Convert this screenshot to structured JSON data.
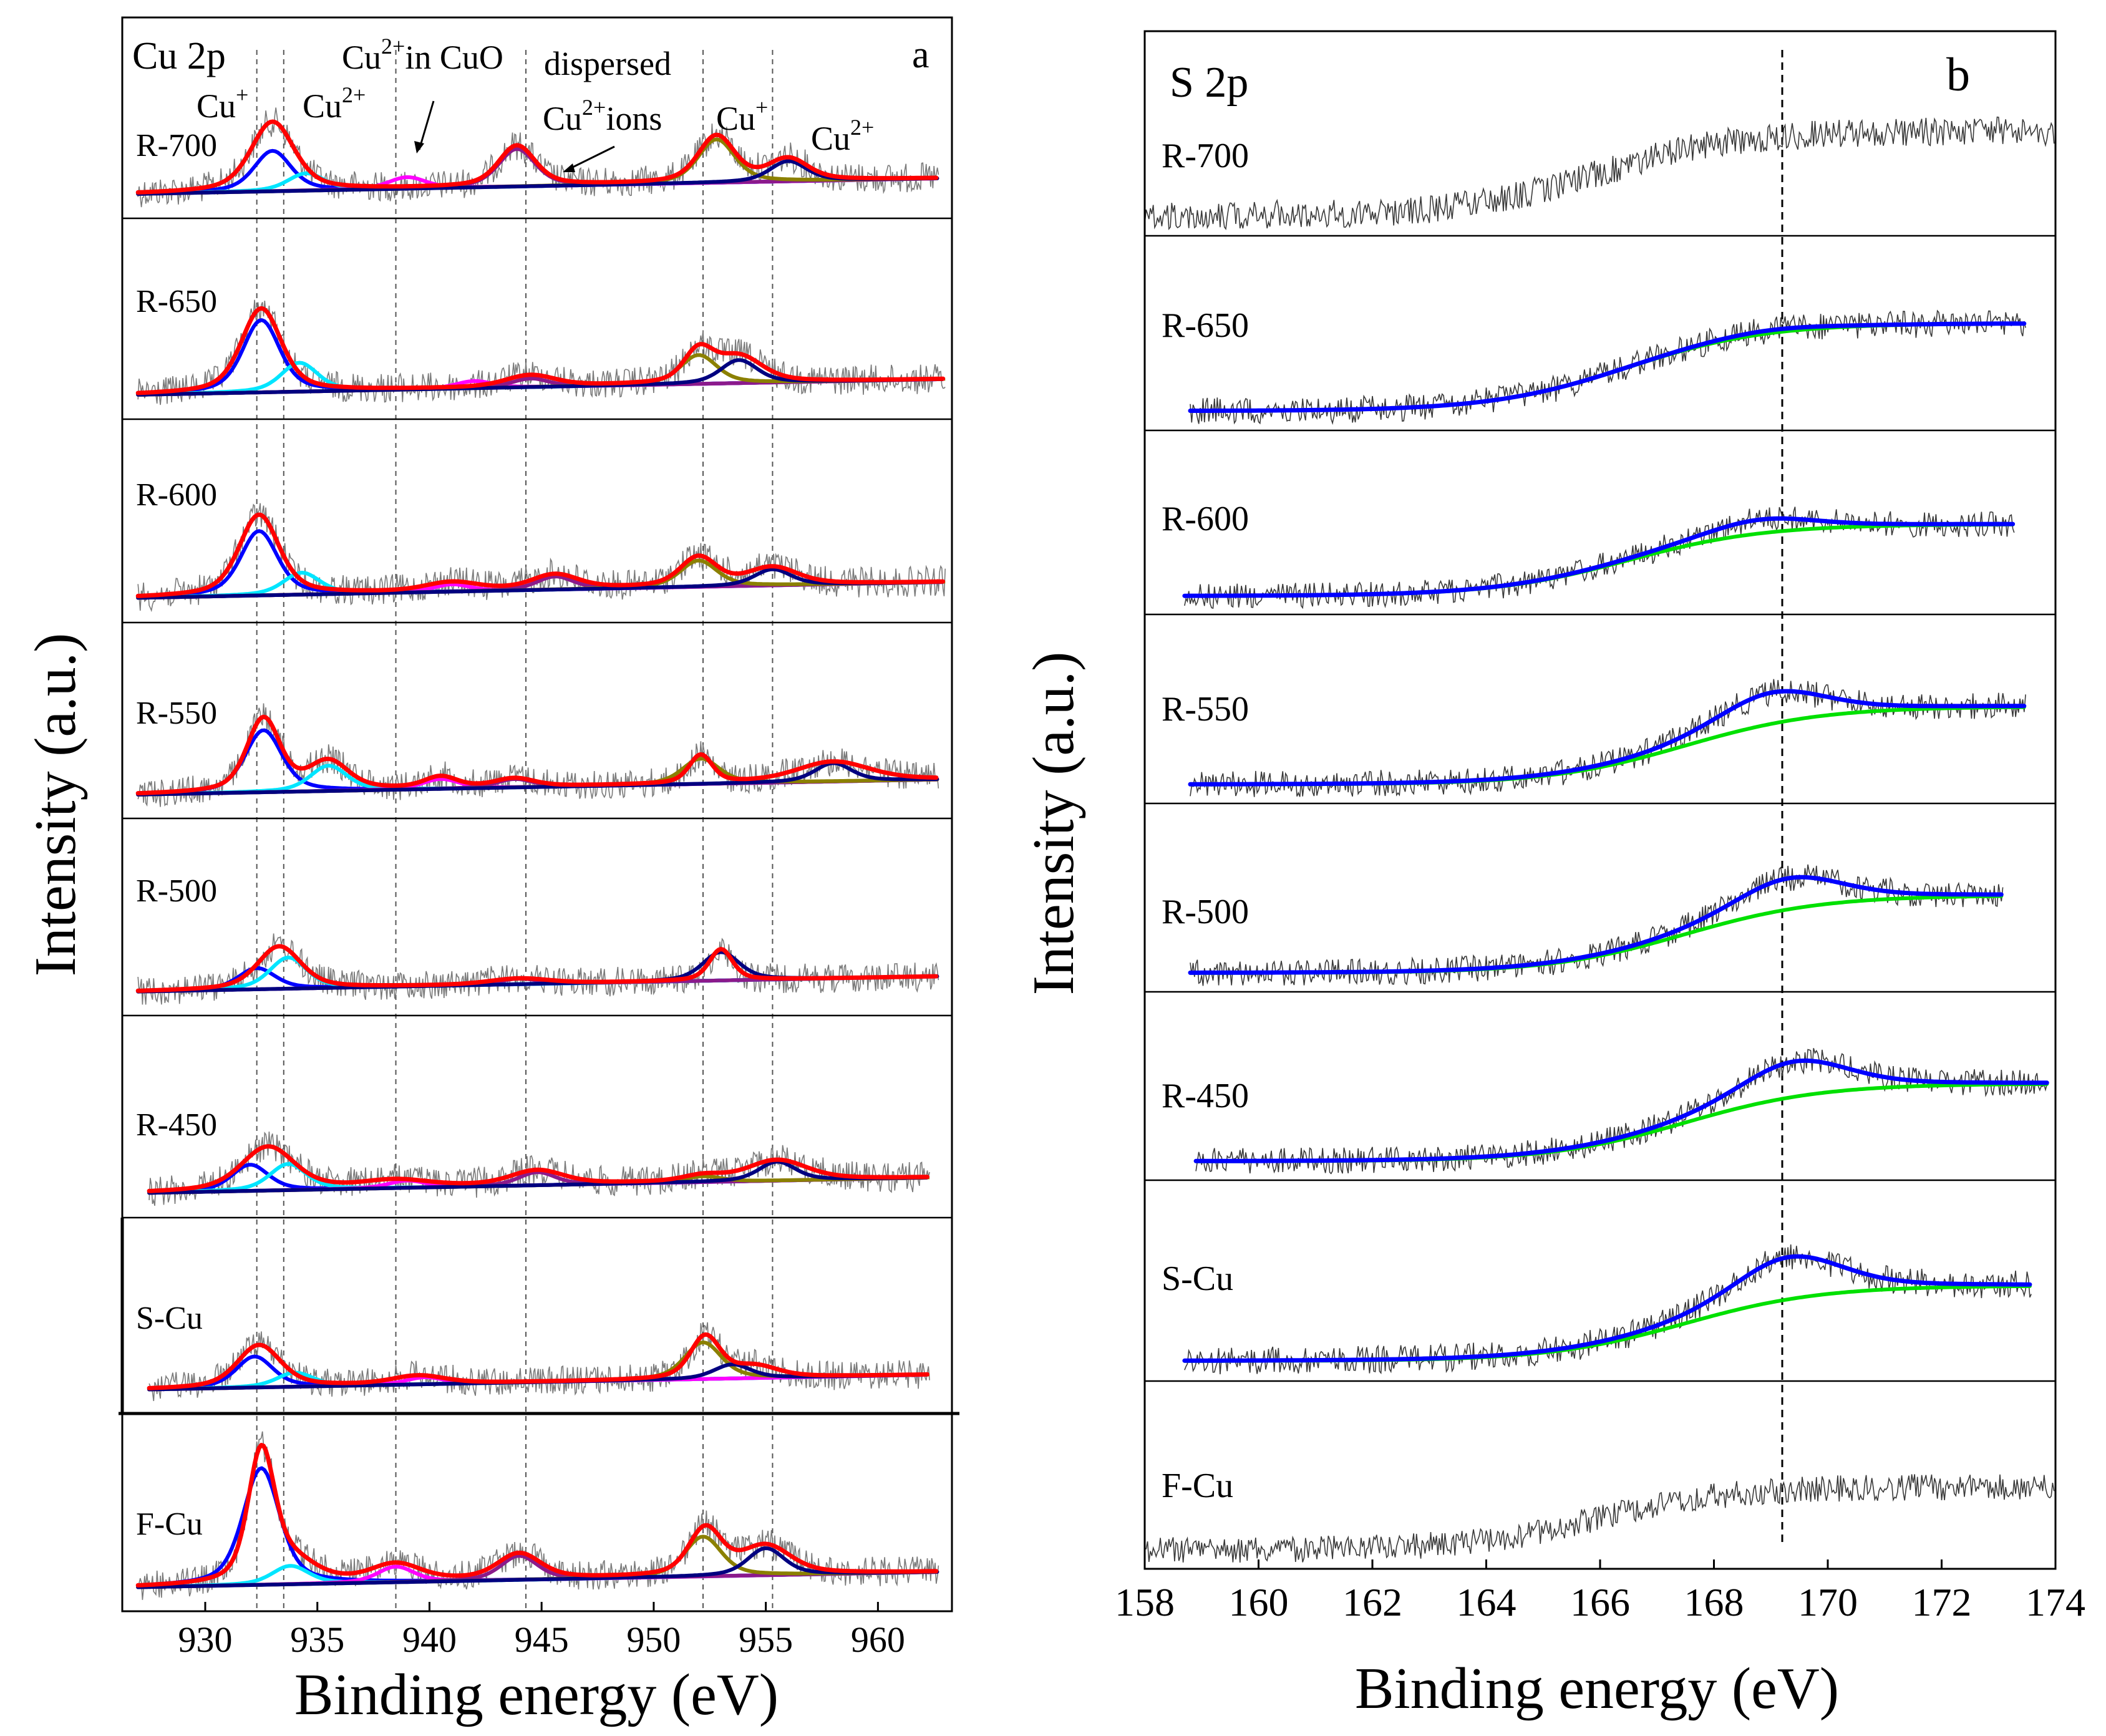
{
  "figure": {
    "ylabel": "Intensity (a.u.)"
  },
  "panels": [
    {
      "id": "a",
      "corner_label": "a",
      "region_label": "Cu 2p",
      "xlabel": "Binding  energy (eV)",
      "ticks": [
        "930",
        "935",
        "940",
        "945",
        "950",
        "955",
        "960"
      ],
      "annotations": [
        {
          "base": "Cu",
          "sup": "+",
          "rest": ""
        },
        {
          "base": "Cu",
          "sup": "2+",
          "rest": ""
        },
        {
          "base": "Cu",
          "sup": "2+",
          "rest": "in CuO"
        },
        {
          "base": "dispersed",
          "sup": "",
          "rest": ""
        },
        {
          "base": "Cu",
          "sup": "2+",
          "rest": "ions"
        },
        {
          "base": "Cu",
          "sup": "+",
          "rest": ""
        },
        {
          "base": "Cu",
          "sup": "2+",
          "rest": ""
        }
      ],
      "samples": [
        "R-700",
        "R-650",
        "R-600",
        "R-550",
        "R-500",
        "R-450",
        "S-Cu",
        "F-Cu"
      ]
    },
    {
      "id": "b",
      "corner_label": "b",
      "region_label": "S 2p",
      "xlabel": "Binding  energy (eV)",
      "ticks": [
        "158",
        "160",
        "162",
        "164",
        "166",
        "168",
        "170",
        "172",
        "174"
      ],
      "samples": [
        "R-700",
        "R-650",
        "R-600",
        "R-550",
        "R-500",
        "R-450",
        "S-Cu",
        "F-Cu"
      ]
    }
  ],
  "colors": {
    "envelope": "#ff0000",
    "cu_plus_main": "#0000ff",
    "cu2_main": "#00e5ff",
    "cu2_satellite": "#ff00ff",
    "dispersed": "#8b1a8b",
    "cu_plus_2p12": "#8b8000",
    "cu2_2p12": "#000080",
    "background": "#8b8b00",
    "s2p_fit": "#0000ff",
    "s2p_background": "#00e000",
    "raw": "#7a7a7a",
    "dashed_line": "#555555"
  },
  "chart_data": [
    {
      "type": "line",
      "title": "Cu 2p",
      "xlabel": "Binding  energy (eV)",
      "ylabel": "Intensity (a.u.)",
      "xlim": [
        927,
        963
      ],
      "x_ticks": [
        930,
        935,
        940,
        945,
        950,
        955,
        960
      ],
      "reference_lines_eV": [
        932.3,
        933.5,
        938.5,
        944.3,
        952.2,
        955.3
      ],
      "series": [
        {
          "name": "R-700",
          "envelope_peaks": [
            {
              "center": 933.0,
              "height": 0.48,
              "width": 1.3
            },
            {
              "center": 943.9,
              "height": 0.28,
              "width": 1.1
            },
            {
              "center": 952.8,
              "height": 0.32,
              "width": 1.1
            },
            {
              "center": 956.0,
              "height": 0.15,
              "width": 1.2
            }
          ],
          "components": [
            {
              "name": "Cu+",
              "center": 933.0,
              "height": 0.28
            },
            {
              "name": "Cu2+",
              "center": 934.5,
              "height": 0.12
            },
            {
              "name": "Cu2+ satellite",
              "center": 939.0,
              "height": 0.08
            },
            {
              "name": "dispersed Cu2+",
              "center": 943.9,
              "height": 0.26
            },
            {
              "name": "Cu+ 2p1/2",
              "center": 952.8,
              "height": 0.3
            },
            {
              "name": "Cu2+ 2p1/2",
              "center": 956.0,
              "height": 0.14
            }
          ]
        },
        {
          "name": "R-650",
          "envelope_peaks": [
            {
              "center": 932.5,
              "height": 0.58,
              "width": 1.2
            },
            {
              "center": 944.5,
              "height": 0.08,
              "width": 1.5
            },
            {
              "center": 952.0,
              "height": 0.22,
              "width": 0.9
            },
            {
              "center": 953.8,
              "height": 0.18,
              "width": 1.4
            }
          ],
          "components": [
            {
              "name": "Cu+",
              "center": 932.5,
              "height": 0.5
            },
            {
              "name": "Cu2+",
              "center": 934.2,
              "height": 0.2
            },
            {
              "name": "Cu2+ satellite",
              "center": 942.0,
              "height": 0.05
            },
            {
              "name": "dispersed Cu2+",
              "center": 944.5,
              "height": 0.06
            },
            {
              "name": "Cu+ 2p1/2",
              "center": 952.0,
              "height": 0.2
            },
            {
              "name": "Cu2+ 2p1/2",
              "center": 953.8,
              "height": 0.16
            }
          ]
        },
        {
          "name": "R-600",
          "envelope_peaks": [
            {
              "center": 932.4,
              "height": 0.55,
              "width": 1.2
            },
            {
              "center": 941.0,
              "height": 0.06,
              "width": 1.6
            },
            {
              "center": 945.6,
              "height": 0.1,
              "width": 1.4
            },
            {
              "center": 952.0,
              "height": 0.2,
              "width": 1.1
            },
            {
              "center": 955.3,
              "height": 0.12,
              "width": 1.5
            }
          ],
          "components": [
            {
              "name": "Cu+",
              "center": 932.4,
              "height": 0.44
            },
            {
              "name": "Cu2+",
              "center": 934.3,
              "height": 0.15
            },
            {
              "name": "Cu2+ satellite",
              "center": 941.0,
              "height": 0.05
            },
            {
              "name": "dispersed Cu2+",
              "center": 945.6,
              "height": 0.09
            },
            {
              "name": "Cu+ 2p1/2",
              "center": 952.0,
              "height": 0.18
            },
            {
              "name": "Cu2+ 2p1/2",
              "center": 955.3,
              "height": 0.11
            }
          ]
        },
        {
          "name": "R-550",
          "envelope_peaks": [
            {
              "center": 932.6,
              "height": 0.52,
              "width": 1.0
            },
            {
              "center": 935.5,
              "height": 0.2,
              "width": 1.2
            },
            {
              "center": 940.5,
              "height": 0.08,
              "width": 1.0
            },
            {
              "center": 943.8,
              "height": 0.06,
              "width": 1.2
            },
            {
              "center": 952.1,
              "height": 0.2,
              "width": 0.7
            },
            {
              "center": 958.0,
              "height": 0.14,
              "width": 2.2
            }
          ],
          "components": [
            {
              "name": "Cu+",
              "center": 932.6,
              "height": 0.44
            },
            {
              "name": "Cu2+",
              "center": 935.5,
              "height": 0.18
            },
            {
              "name": "Cu2+ satellite",
              "center": 940.5,
              "height": 0.07
            },
            {
              "name": "dispersed Cu2+",
              "center": 943.8,
              "height": 0.06
            },
            {
              "name": "Cu+ 2p1/2",
              "center": 952.1,
              "height": 0.18
            },
            {
              "name": "Cu2+ 2p1/2",
              "center": 958.0,
              "height": 0.13
            }
          ]
        },
        {
          "name": "R-500",
          "envelope_peaks": [
            {
              "center": 933.3,
              "height": 0.3,
              "width": 1.3
            },
            {
              "center": 944.0,
              "height": 0.04,
              "width": 1.8
            },
            {
              "center": 953.0,
              "height": 0.22,
              "width": 0.7
            }
          ],
          "components": [
            {
              "name": "Cu+",
              "center": 932.3,
              "height": 0.15
            },
            {
              "name": "Cu2+",
              "center": 933.7,
              "height": 0.22
            },
            {
              "name": "dispersed Cu2+",
              "center": 944.0,
              "height": 0.04
            },
            {
              "name": "Cu2+ 2p1/2",
              "center": 953.0,
              "height": 0.2
            }
          ]
        },
        {
          "name": "R-450",
          "envelope_peaks": [
            {
              "center": 932.8,
              "height": 0.3,
              "width": 1.6
            },
            {
              "center": 938.5,
              "height": 0.05,
              "width": 2.0
            },
            {
              "center": 944.8,
              "height": 0.1,
              "width": 1.6
            },
            {
              "center": 952.2,
              "height": 0.04,
              "width": 1.2
            },
            {
              "center": 955.5,
              "height": 0.14,
              "width": 1.8
            }
          ],
          "components": [
            {
              "name": "Cu+",
              "center": 932.0,
              "height": 0.18
            },
            {
              "name": "Cu2+",
              "center": 933.7,
              "height": 0.18
            },
            {
              "name": "Cu2+ satellite",
              "center": 939.0,
              "height": 0.05
            },
            {
              "name": "dispersed Cu2+",
              "center": 944.8,
              "height": 0.09
            },
            {
              "name": "Cu+ 2p1/2",
              "center": 952.2,
              "height": 0.04
            },
            {
              "name": "Cu2+ 2p1/2",
              "center": 955.5,
              "height": 0.13
            }
          ]
        },
        {
          "name": "S-Cu",
          "envelope_peaks": [
            {
              "center": 932.4,
              "height": 0.3,
              "width": 1.3
            },
            {
              "center": 939.5,
              "height": 0.06,
              "width": 1.6
            },
            {
              "center": 952.3,
              "height": 0.3,
              "width": 0.9
            },
            {
              "center": 954.5,
              "height": 0.08,
              "width": 1.4
            }
          ],
          "components": [
            {
              "name": "Cu+",
              "center": 932.2,
              "height": 0.22
            },
            {
              "name": "Cu2+",
              "center": 934.0,
              "height": 0.1
            },
            {
              "name": "Cu2+ satellite",
              "center": 939.8,
              "height": 0.05
            },
            {
              "name": "Cu+ 2p1/2",
              "center": 952.2,
              "height": 0.26
            },
            {
              "name": "Cu2+ 2p1/2",
              "center": 953.5,
              "height": 0.1
            }
          ]
        },
        {
          "name": "F-Cu",
          "envelope_peaks": [
            {
              "center": 932.5,
              "height": 0.9,
              "width": 0.8
            },
            {
              "center": 933.8,
              "height": 0.15,
              "width": 1.5
            },
            {
              "center": 938.5,
              "height": 0.12,
              "width": 1.5
            },
            {
              "center": 944.0,
              "height": 0.18,
              "width": 1.3
            },
            {
              "center": 952.3,
              "height": 0.33,
              "width": 1.0
            },
            {
              "center": 955.0,
              "height": 0.2,
              "width": 1.5
            }
          ],
          "components": [
            {
              "name": "Cu+",
              "center": 932.5,
              "height": 0.82
            },
            {
              "name": "Cu2+",
              "center": 933.8,
              "height": 0.13
            },
            {
              "name": "Cu2+ satellite",
              "center": 938.5,
              "height": 0.11
            },
            {
              "name": "dispersed Cu2+",
              "center": 944.0,
              "height": 0.17
            },
            {
              "name": "Cu+ 2p1/2",
              "center": 952.2,
              "height": 0.28
            },
            {
              "name": "Cu2+ 2p1/2",
              "center": 955.0,
              "height": 0.19
            }
          ]
        }
      ]
    },
    {
      "type": "line",
      "title": "S 2p",
      "xlabel": "Binding  energy (eV)",
      "ylabel": "Intensity (a.u.)",
      "xlim": [
        158,
        174
      ],
      "x_ticks": [
        158,
        160,
        162,
        164,
        166,
        168,
        170,
        172,
        174
      ],
      "reference_lines_eV": [
        169.2
      ],
      "series": [
        {
          "name": "R-700",
          "fitted": false,
          "x_range": [
            158,
            174
          ],
          "step_center": 166.0,
          "step_height": 0.55
        },
        {
          "name": "R-650",
          "fitted": true,
          "x_range": [
            158.8,
            173.5
          ],
          "step_center": 166.5,
          "step_height": 0.6,
          "peak_center": 169.0,
          "peak_height": 0.02
        },
        {
          "name": "R-600",
          "fitted": true,
          "x_range": [
            158.7,
            173.3
          ],
          "step_center": 166.5,
          "step_height": 0.52,
          "peak_center": 168.8,
          "peak_height": 0.1
        },
        {
          "name": "R-550",
          "fitted": true,
          "x_range": [
            158.8,
            173.5
          ],
          "step_center": 167.5,
          "step_height": 0.55,
          "peak_center": 169.0,
          "peak_height": 0.22
        },
        {
          "name": "R-500",
          "fitted": true,
          "x_range": [
            158.8,
            173.1
          ],
          "step_center": 167.5,
          "step_height": 0.55,
          "peak_center": 169.3,
          "peak_height": 0.22
        },
        {
          "name": "R-450",
          "fitted": true,
          "x_range": [
            158.9,
            173.9
          ],
          "step_center": 167.5,
          "step_height": 0.55,
          "peak_center": 169.4,
          "peak_height": 0.25
        },
        {
          "name": "S-Cu",
          "fitted": true,
          "x_range": [
            158.7,
            173.6
          ],
          "step_center": 167.5,
          "step_height": 0.5,
          "peak_center": 169.3,
          "peak_height": 0.28
        },
        {
          "name": "F-Cu",
          "fitted": false,
          "x_range": [
            158,
            174
          ],
          "step_center": 166.0,
          "step_height": 0.45
        }
      ]
    }
  ]
}
